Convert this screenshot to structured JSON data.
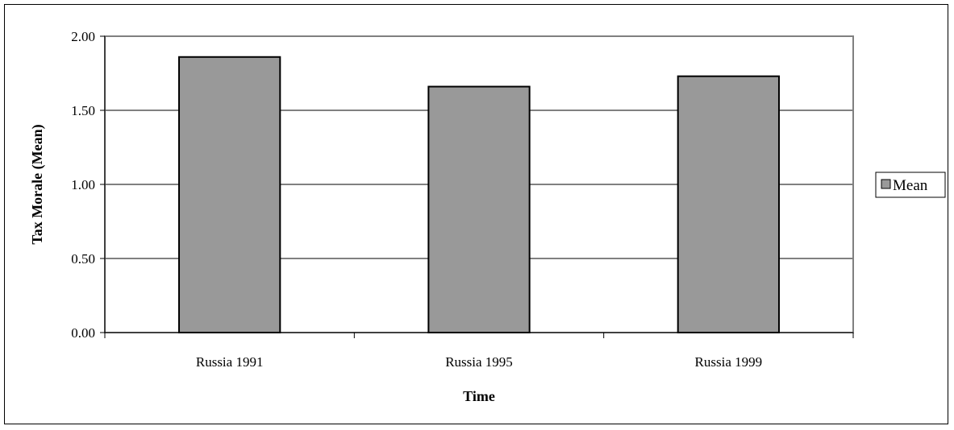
{
  "chart_data": {
    "type": "bar",
    "categories": [
      "Russia 1991",
      "Russia 1995",
      "Russia 1999"
    ],
    "series": [
      {
        "name": "Mean",
        "values": [
          1.86,
          1.66,
          1.73
        ],
        "color": "#999999"
      }
    ],
    "yticks": [
      "0.00",
      "0.50",
      "1.00",
      "1.50",
      "2.00"
    ],
    "ylim": [
      0,
      2
    ],
    "xlabel": "Time",
    "ylabel": "Tax Morale (Mean)",
    "legend": {
      "position": "right",
      "entries": [
        "Mean"
      ]
    },
    "grid": true,
    "colors": {
      "bar_fill": "#999999",
      "plot_border": "#808080",
      "gridline": "#000000"
    }
  }
}
